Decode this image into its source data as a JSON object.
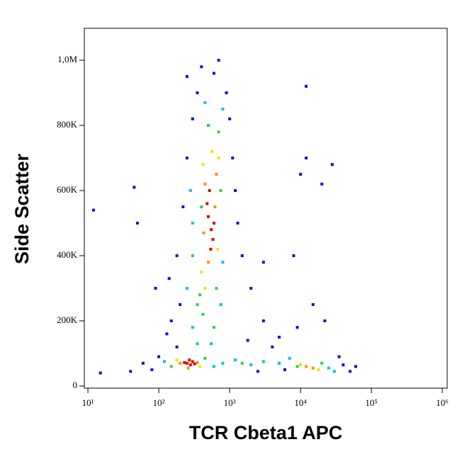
{
  "chart_data": {
    "type": "scatter",
    "x_label": "TCR Cbeta1 APC",
    "y_label": "Side Scatter",
    "xscale": "log",
    "xlim": [
      8.9,
      1170000
    ],
    "ylim": [
      -6500,
      1098000
    ],
    "xticks": [
      {
        "value": 10,
        "label": "10¹"
      },
      {
        "value": 100,
        "label": "10²"
      },
      {
        "value": 1000,
        "label": "10³"
      },
      {
        "value": 10000,
        "label": "10⁴"
      },
      {
        "value": 100000,
        "label": "10⁵"
      },
      {
        "value": 1000000,
        "label": "10⁶"
      }
    ],
    "yticks": [
      0,
      {
        "value": 200000,
        "label": "200K"
      },
      {
        "value": 400000,
        "label": "400K"
      },
      {
        "value": 600000,
        "label": "600K"
      },
      {
        "value": 800000,
        "label": "800K"
      },
      {
        "value": 1000000,
        "label": "1,0M"
      }
    ],
    "series": [
      {
        "color": "#0010e8",
        "x": [
          60,
          80,
          100,
          40,
          15,
          12,
          45,
          50,
          90,
          150,
          200,
          180,
          220,
          250,
          300,
          350,
          600,
          700,
          900,
          1100,
          1300,
          1500,
          2000,
          3000,
          5000,
          8000,
          10000,
          12000,
          20000,
          28000,
          15000,
          9000,
          40000,
          60000,
          50000,
          1000,
          1200,
          180,
          130,
          1800,
          4000,
          3000,
          22000,
          12000,
          400,
          35000,
          6000,
          250,
          140,
          2500
        ],
        "values": [
          70000,
          50000,
          90000,
          45000,
          40000,
          540000,
          610000,
          500000,
          300000,
          200000,
          250000,
          400000,
          550000,
          700000,
          820000,
          900000,
          960000,
          1000000,
          900000,
          700000,
          500000,
          400000,
          300000,
          200000,
          150000,
          400000,
          650000,
          700000,
          620000,
          680000,
          250000,
          180000,
          65000,
          60000,
          45000,
          820000,
          600000,
          120000,
          160000,
          140000,
          120000,
          380000,
          200000,
          920000,
          980000,
          90000,
          50000,
          950000,
          330000,
          45000
        ]
      },
      {
        "color": "#00c0e8",
        "x": [
          120,
          600,
          800,
          1200,
          2000,
          3000,
          5000,
          25000,
          300,
          350,
          550,
          800,
          450,
          280,
          300,
          800,
          750,
          250,
          7000,
          30000
        ],
        "values": [
          75000,
          60000,
          70000,
          80000,
          65000,
          75000,
          70000,
          55000,
          180000,
          130000,
          130000,
          850000,
          870000,
          600000,
          500000,
          380000,
          250000,
          300000,
          85000,
          45000
        ]
      },
      {
        "color": "#30d040",
        "x": [
          150,
          450,
          350,
          420,
          380,
          700,
          500,
          300,
          750,
          400,
          9000,
          20000,
          1500,
          600,
          650
        ],
        "values": [
          60000,
          85000,
          250000,
          220000,
          280000,
          780000,
          800000,
          400000,
          600000,
          550000,
          60000,
          70000,
          70000,
          180000,
          300000
        ]
      },
      {
        "color": "#e8e800",
        "x": [
          180,
          380,
          400,
          700,
          420,
          680,
          560,
          450,
          10000,
          18000
        ],
        "values": [
          80000,
          60000,
          350000,
          700000,
          680000,
          420000,
          720000,
          300000,
          65000,
          50000
        ]
      },
      {
        "color": "#ff8c00",
        "x": [
          200,
          350,
          260,
          450,
          620,
          500,
          650,
          430,
          15000,
          12000
        ],
        "values": [
          70000,
          72000,
          55000,
          620000,
          550000,
          380000,
          650000,
          470000,
          55000,
          60000
        ]
      },
      {
        "color": "#e00000",
        "x": [
          250,
          280,
          300,
          320,
          270,
          230,
          500,
          550,
          480,
          520,
          580,
          600,
          540
        ],
        "values": [
          70000,
          65000,
          75000,
          68000,
          80000,
          72000,
          520000,
          480000,
          560000,
          600000,
          450000,
          500000,
          420000
        ]
      }
    ]
  }
}
